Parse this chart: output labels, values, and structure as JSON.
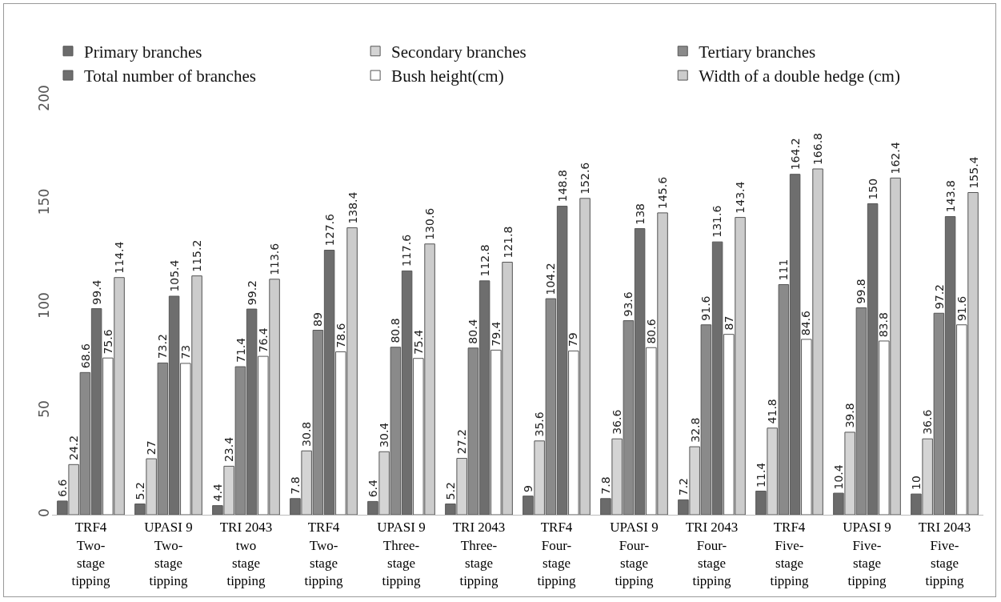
{
  "chart_data": {
    "type": "bar",
    "categories": [
      "TRF4 Two-stage tipping",
      "UPASI 9 Two-stage tipping",
      "TRI 2043 two stage tipping",
      "TRF4 Two-stage tipping",
      "UPASI 9 Three-stage tipping",
      "TRI 2043 Three-stage tipping",
      "TRF4 Four-stage tipping",
      "UPASI 9 Four-stage tipping",
      "TRI 2043 Four-stage tipping",
      "TRF4 Five-stage tipping",
      "UPASI 9 Five-stage tipping",
      "TRI 2043 Five-stage tipping"
    ],
    "series": [
      {
        "name": "Primary branches",
        "color": "#6b6b6b",
        "values": [
          6.6,
          5.2,
          4.4,
          7.8,
          6.4,
          5.2,
          9,
          7.8,
          7.2,
          11.4,
          10.4,
          10
        ]
      },
      {
        "name": "Secondary branches",
        "color": "#d4d4d4",
        "values": [
          24.2,
          27,
          23.4,
          30.8,
          30.4,
          27.2,
          35.6,
          36.6,
          32.8,
          41.8,
          39.8,
          36.6
        ]
      },
      {
        "name": "Tertiary branches",
        "color": "#8a8a8a",
        "values": [
          68.6,
          73.2,
          71.4,
          89,
          80.8,
          80.4,
          104.2,
          93.6,
          91.6,
          111,
          99.8,
          97.2
        ]
      },
      {
        "name": "Total number of branches",
        "color": "#6e6e6e",
        "values": [
          99.4,
          105.4,
          99.2,
          127.6,
          117.6,
          112.8,
          148.8,
          138,
          131.6,
          164.2,
          150,
          143.8
        ]
      },
      {
        "name": "Bush height(cm)",
        "color": "#ffffff",
        "values": [
          75.6,
          73,
          76.4,
          78.6,
          75.4,
          79.4,
          79,
          80.6,
          87,
          84.6,
          83.8,
          91.6
        ]
      },
      {
        "name": "Width of a double hedge (cm)",
        "color": "#cccccc",
        "values": [
          114.4,
          115.2,
          113.6,
          138.4,
          130.6,
          121.8,
          152.6,
          145.6,
          143.4,
          166.8,
          162.4,
          155.4
        ]
      }
    ],
    "ylim": [
      0,
      200
    ],
    "yticks": [
      0,
      50,
      100,
      150,
      200
    ],
    "grid": false,
    "legend": "top",
    "data_labels": true
  }
}
